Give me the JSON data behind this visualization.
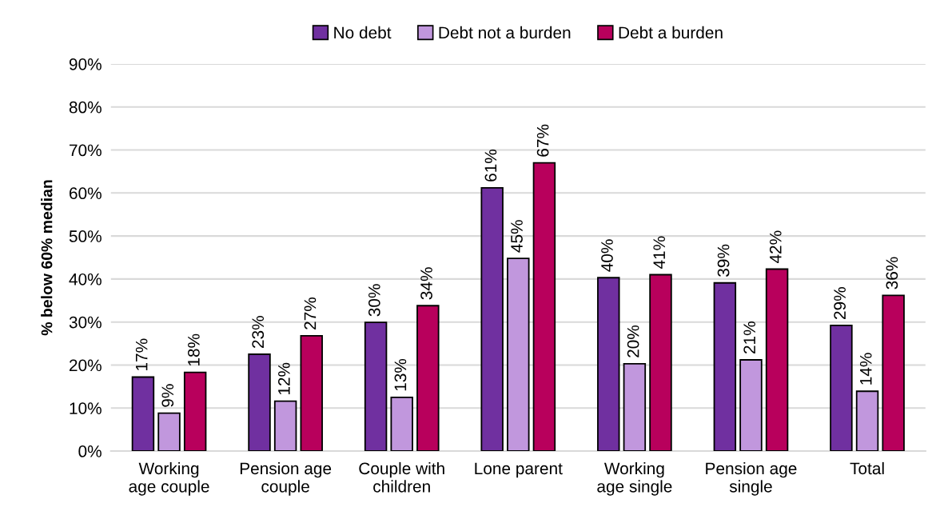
{
  "chart_data": {
    "type": "bar",
    "categories": [
      "Working\nage couple",
      "Pension age\ncouple",
      "Couple with\nchildren",
      "Lone parent",
      "Working\nage single",
      "Pension age\nsingle",
      "Total"
    ],
    "series": [
      {
        "name": "No debt",
        "color": "#7030a0",
        "values": [
          17.2,
          22.5,
          29.9,
          61.2,
          40.3,
          39.1,
          29.2
        ],
        "value_labels": [
          "17%",
          "23%",
          "30%",
          "61%",
          "40%",
          "39%",
          "29%"
        ]
      },
      {
        "name": "Debt not a burden",
        "color": "#c197dd",
        "values": [
          8.8,
          11.6,
          12.5,
          44.8,
          20.3,
          21.2,
          13.9
        ],
        "value_labels": [
          "9%",
          "12%",
          "13%",
          "45%",
          "20%",
          "21%",
          "14%"
        ]
      },
      {
        "name": "Debt a burden",
        "color": "#b8005c",
        "values": [
          18.3,
          26.8,
          33.8,
          67.0,
          41.0,
          42.3,
          36.2
        ],
        "value_labels": [
          "18%",
          "27%",
          "34%",
          "67%",
          "41%",
          "42%",
          "36%"
        ]
      }
    ],
    "ylabel": "% below 60% median",
    "ylim": [
      0,
      90
    ],
    "yticks": [
      {
        "value": 0,
        "label": "0%"
      },
      {
        "value": 10,
        "label": "10%"
      },
      {
        "value": 20,
        "label": "20%"
      },
      {
        "value": 30,
        "label": "30%"
      },
      {
        "value": 40,
        "label": "40%"
      },
      {
        "value": 50,
        "label": "50%"
      },
      {
        "value": 60,
        "label": "60%"
      },
      {
        "value": 70,
        "label": "70%"
      },
      {
        "value": 80,
        "label": "80%"
      },
      {
        "value": 90,
        "label": "90%"
      }
    ],
    "grid": "y",
    "legend": "top"
  }
}
